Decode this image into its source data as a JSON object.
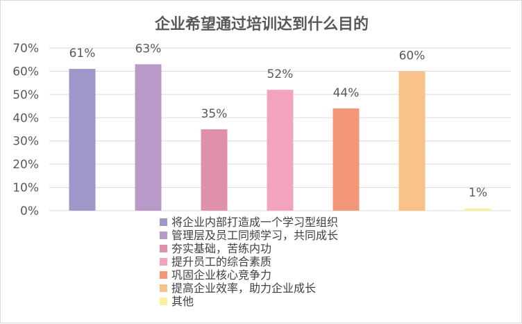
{
  "chart_data": {
    "type": "bar",
    "title": "企业希望通过培训达到什么目的",
    "xlabel": "",
    "ylabel": "",
    "ylim": [
      0,
      70
    ],
    "yticks": [
      "0%",
      "10%",
      "20%",
      "30%",
      "40%",
      "50%",
      "60%",
      "70%"
    ],
    "grid": true,
    "legend_position": "bottom",
    "categories": [
      "将企业内部打造成一个学习型组织",
      "管理层及员工同频学习，共同成长",
      "夯实基础，苦练内功",
      "提升员工的综合素质",
      "巩固企业核心竞争力",
      "提高企业效率，助力企业成长",
      "其他"
    ],
    "values": [
      61,
      63,
      35,
      52,
      44,
      60,
      1
    ],
    "data_labels": [
      "61%",
      "63%",
      "35%",
      "52%",
      "44%",
      "60%",
      "1%"
    ],
    "colors": [
      "#a196c8",
      "#b89ac8",
      "#e08fad",
      "#f4a3bd",
      "#f39778",
      "#f9c28a",
      "#fbf0a0"
    ]
  }
}
